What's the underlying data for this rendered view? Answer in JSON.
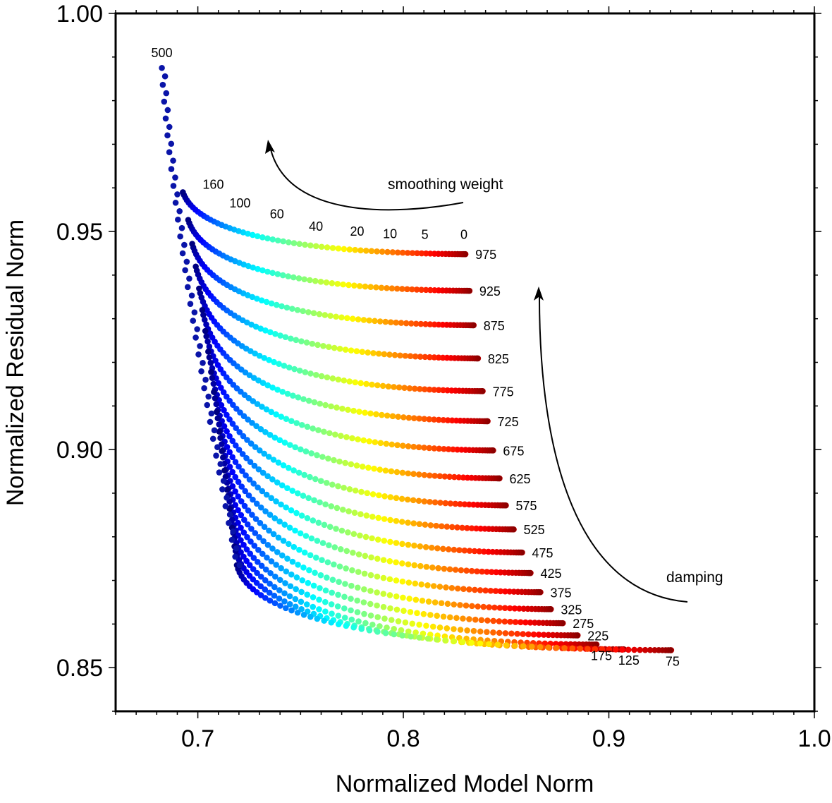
{
  "chart_data": {
    "type": "scatter",
    "title": "",
    "xlabel": "Normalized Model Norm",
    "ylabel": "Normalized Residual Norm",
    "xlim": [
      0.66,
      1.0
    ],
    "ylim": [
      0.84,
      1.0
    ],
    "grid": false,
    "legend": "none",
    "colormap": "jet (blue = high smoothing weight, red = low smoothing weight)",
    "x_ticks": [
      {
        "value": 0.7,
        "label": "0.7"
      },
      {
        "value": 0.8,
        "label": "0.8"
      },
      {
        "value": 0.9,
        "label": "0.9"
      },
      {
        "value": 1.0,
        "label": "1.0"
      }
    ],
    "y_ticks": [
      {
        "value": 0.85,
        "label": "0.85"
      },
      {
        "value": 0.9,
        "label": "0.90"
      },
      {
        "value": 0.95,
        "label": "0.95"
      },
      {
        "value": 1.0,
        "label": "1.00"
      }
    ],
    "x_minor_step": 0.01,
    "y_minor_step": 0.01,
    "smoothing_weights": [
      0,
      5,
      10,
      20,
      40,
      60,
      100,
      160,
      500
    ],
    "smoothing_labels": [
      {
        "text": "0",
        "x": 0.8295,
        "y": 0.9483
      },
      {
        "text": "5",
        "x": 0.8105,
        "y": 0.9483
      },
      {
        "text": "10",
        "x": 0.7935,
        "y": 0.9485
      },
      {
        "text": "20",
        "x": 0.7775,
        "y": 0.949
      },
      {
        "text": "40",
        "x": 0.7575,
        "y": 0.9502
      },
      {
        "text": "60",
        "x": 0.7385,
        "y": 0.953
      },
      {
        "text": "100",
        "x": 0.7205,
        "y": 0.9555
      },
      {
        "text": "160",
        "x": 0.7075,
        "y": 0.9598
      },
      {
        "text": "500",
        "x": 0.6825,
        "y": 0.99
      }
    ],
    "damping_series": [
      {
        "damping": 975,
        "x0": 0.8302,
        "y0": 0.9448
      },
      {
        "damping": 925,
        "x0": 0.8322,
        "y0": 0.9364
      },
      {
        "damping": 875,
        "x0": 0.8342,
        "y0": 0.9285
      },
      {
        "damping": 825,
        "x0": 0.8363,
        "y0": 0.9209
      },
      {
        "damping": 775,
        "x0": 0.8386,
        "y0": 0.9134
      },
      {
        "damping": 725,
        "x0": 0.841,
        "y0": 0.9065
      },
      {
        "damping": 675,
        "x0": 0.8437,
        "y0": 0.8998
      },
      {
        "damping": 625,
        "x0": 0.8468,
        "y0": 0.8934
      },
      {
        "damping": 575,
        "x0": 0.8499,
        "y0": 0.8872
      },
      {
        "damping": 525,
        "x0": 0.8537,
        "y0": 0.8817
      },
      {
        "damping": 475,
        "x0": 0.8578,
        "y0": 0.8764
      },
      {
        "damping": 425,
        "x0": 0.8619,
        "y0": 0.8717
      },
      {
        "damping": 375,
        "x0": 0.8667,
        "y0": 0.8673
      },
      {
        "damping": 325,
        "x0": 0.8718,
        "y0": 0.8634
      },
      {
        "damping": 275,
        "x0": 0.8776,
        "y0": 0.8602
      },
      {
        "damping": 225,
        "x0": 0.8848,
        "y0": 0.8574
      },
      {
        "damping": 175,
        "x0": 0.894,
        "y0": 0.8553
      },
      {
        "damping": 125,
        "x0": 0.9073,
        "y0": 0.8542
      },
      {
        "damping": 75,
        "x0": 0.9303,
        "y0": 0.854
      }
    ],
    "high_smoothing_branch": {
      "label": "500",
      "top_point": {
        "x": 0.6825,
        "y": 0.9875
      },
      "bottom_point": {
        "x": 0.719,
        "y": 0.8735
      }
    },
    "annotations": [
      {
        "text": "smoothing weight",
        "x": 0.8225,
        "y": 0.9612,
        "arrow": "curved, pointing up-left toward high smoothing"
      },
      {
        "text": "damping",
        "x": 0.95,
        "y": 0.868,
        "arrow": "curved, pointing upward toward high damping"
      }
    ],
    "colors": {
      "low_smoothing": "#c00000",
      "mid_smoothing": "#ffff00",
      "high_smoothing": "#0010a8",
      "axis": "#000000"
    }
  }
}
